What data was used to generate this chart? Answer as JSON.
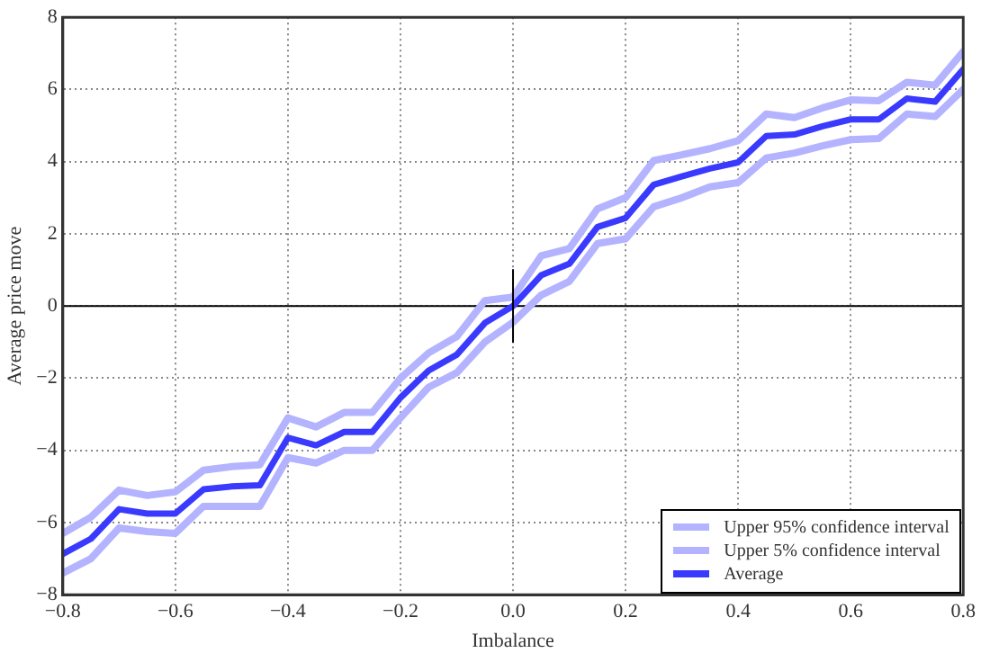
{
  "chart_data": {
    "type": "line",
    "xlabel": "Imbalance",
    "ylabel": "Average price move",
    "x": [
      -0.8,
      -0.75,
      -0.7,
      -0.65,
      -0.6,
      -0.55,
      -0.5,
      -0.45,
      -0.4,
      -0.35,
      -0.3,
      -0.25,
      -0.2,
      -0.15,
      -0.1,
      -0.05,
      0,
      0.05,
      0.1,
      0.15,
      0.2,
      0.25,
      0.3,
      0.35,
      0.4,
      0.45,
      0.5,
      0.55,
      0.6,
      0.65,
      0.7,
      0.75,
      0.8
    ],
    "series": [
      {
        "name": "Upper 95% confidence interval",
        "color": "#b3b3ff",
        "values": [
          -6.3,
          -5.85,
          -5.1,
          -5.25,
          -5.15,
          -4.55,
          -4.45,
          -4.4,
          -3.1,
          -3.35,
          -2.95,
          -2.95,
          -2.0,
          -1.3,
          -0.85,
          0.15,
          0.25,
          1.39,
          1.59,
          2.69,
          3.0,
          4.03,
          4.19,
          4.36,
          4.58,
          5.32,
          5.22,
          5.49,
          5.71,
          5.69,
          6.2,
          6.12,
          7.05
        ]
      },
      {
        "name": "Upper 5% confidence interval",
        "color": "#b3b3ff",
        "values": [
          -7.4,
          -7.0,
          -6.15,
          -6.25,
          -6.3,
          -5.55,
          -5.55,
          -5.55,
          -4.2,
          -4.35,
          -4.0,
          -4.0,
          -3.1,
          -2.25,
          -1.85,
          -1.0,
          -0.45,
          0.3,
          0.68,
          1.73,
          1.86,
          2.75,
          3.0,
          3.3,
          3.42,
          4.1,
          4.24,
          4.44,
          4.61,
          4.64,
          5.32,
          5.25,
          6.0
        ]
      },
      {
        "name": "Average",
        "color": "#3a3aff",
        "values": [
          -6.87,
          -6.45,
          -5.63,
          -5.75,
          -5.75,
          -5.08,
          -5.0,
          -4.97,
          -3.65,
          -3.86,
          -3.49,
          -3.49,
          -2.54,
          -1.79,
          -1.35,
          -0.47,
          0,
          0.85,
          1.17,
          2.19,
          2.44,
          3.36,
          3.59,
          3.81,
          3.98,
          4.71,
          4.75,
          4.98,
          5.17,
          5.17,
          5.75,
          5.66,
          6.56
        ]
      },
      {
        "color": "#000000",
        "x": [
          0,
          0
        ],
        "values": [
          -1,
          1
        ]
      }
    ],
    "ref_lines": [
      {
        "axis": "y",
        "value": 0,
        "color": "#000000"
      }
    ],
    "xlim": [
      -0.8,
      0.8
    ],
    "xticks": [
      {
        "value": -0.8,
        "label": "−0.8"
      },
      {
        "value": -0.6,
        "label": "−0.6"
      },
      {
        "value": -0.4,
        "label": "−0.4"
      },
      {
        "value": -0.2,
        "label": "−0.2"
      },
      {
        "value": 0,
        "label": "0.0"
      },
      {
        "value": 0.2,
        "label": "0.2"
      },
      {
        "value": 0.4,
        "label": "0.4"
      },
      {
        "value": 0.6,
        "label": "0.6"
      },
      {
        "value": 0.8,
        "label": "0.8"
      }
    ],
    "ylim": [
      -8,
      8
    ],
    "yticks": [
      {
        "value": -8,
        "label": "−8"
      },
      {
        "value": -6,
        "label": "−6"
      },
      {
        "value": -4,
        "label": "−4"
      },
      {
        "value": -2,
        "label": "−2"
      },
      0,
      2,
      4,
      6,
      8
    ],
    "grid": true,
    "legend": "bottom right",
    "marker": "none",
    "line_style": "solid"
  }
}
